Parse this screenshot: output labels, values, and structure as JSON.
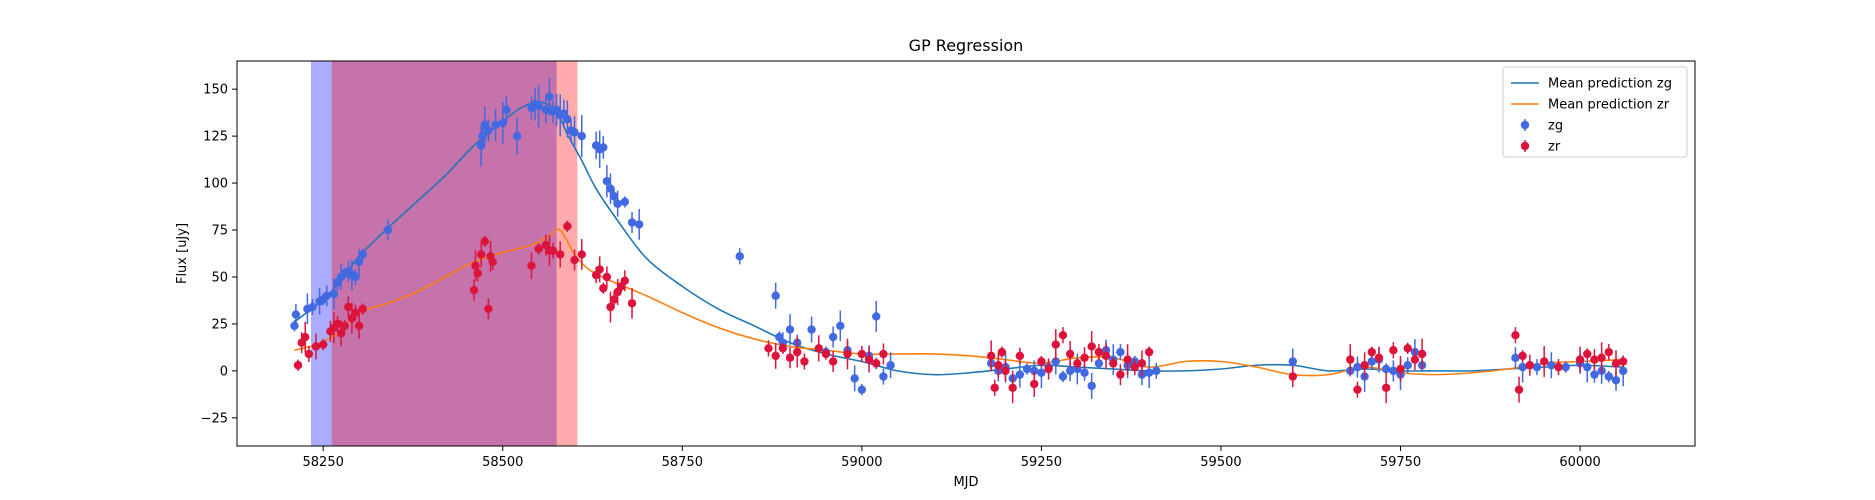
{
  "chart_data": {
    "type": "scatter",
    "title": "GP Regression",
    "xlabel": "MJD",
    "ylabel": "Flux [uJy]",
    "xlim": [
      58130,
      60160
    ],
    "ylim": [
      -40,
      165
    ],
    "xticks": [
      58250,
      58500,
      58750,
      59000,
      59250,
      59500,
      59750,
      60000
    ],
    "yticks": [
      -25,
      0,
      25,
      50,
      75,
      100,
      125,
      150
    ],
    "legend_position": "top-right",
    "shaded_regions": [
      {
        "x0": 58233,
        "x1": 58575,
        "color": "#0000ff",
        "alpha": 0.33
      },
      {
        "x0": 58262,
        "x1": 58604,
        "color": "#ff0000",
        "alpha": 0.33
      }
    ],
    "series": [
      {
        "name": "Mean prediction zg",
        "kind": "line",
        "color": "#1f77b4",
        "x": [
          58210,
          58230,
          58250,
          58275,
          58300,
          58340,
          58380,
          58420,
          58460,
          58500,
          58530,
          58555,
          58575,
          58590,
          58610,
          58630,
          58660,
          58700,
          58750,
          58800,
          58850,
          58900,
          58950,
          59000,
          59050,
          59100,
          59150,
          59200,
          59250,
          59300,
          59350,
          59400,
          59450,
          59500,
          59550,
          59600,
          59650,
          59700,
          59750,
          59800,
          59850,
          59900,
          59950,
          60000,
          60060
        ],
        "y": [
          26,
          32,
          38,
          48,
          61,
          76,
          90,
          104,
          120,
          133,
          141,
          143,
          138,
          126,
          112,
          97,
          80,
          60,
          45,
          33,
          24,
          15,
          9,
          5,
          0,
          -2,
          -1,
          1,
          3,
          2,
          1,
          0,
          0,
          1,
          3,
          3,
          0,
          1,
          0,
          0,
          0,
          1,
          2,
          3,
          2
        ]
      },
      {
        "name": "Mean prediction zr",
        "kind": "line",
        "color": "#ff7f0e",
        "x": [
          58210,
          58240,
          58270,
          58300,
          58340,
          58380,
          58420,
          58460,
          58500,
          58540,
          58565,
          58580,
          58600,
          58620,
          58650,
          58700,
          58750,
          58800,
          58850,
          58900,
          58950,
          59000,
          59050,
          59100,
          59150,
          59200,
          59250,
          59300,
          59350,
          59400,
          59450,
          59500,
          59550,
          59600,
          59650,
          59700,
          59750,
          59800,
          59850,
          59900,
          59950,
          60000,
          60060
        ],
        "y": [
          11,
          14,
          20,
          31,
          36,
          42,
          50,
          58,
          63,
          67,
          72,
          75,
          62,
          54,
          48,
          40,
          31,
          23,
          17,
          13,
          11,
          9,
          9,
          9,
          8,
          6,
          4,
          7,
          7,
          2,
          5,
          5,
          2,
          -2,
          -2,
          2,
          -1,
          -2,
          -1,
          1,
          4,
          5,
          6
        ]
      },
      {
        "name": "zg",
        "kind": "errorbar",
        "color": "#4169e1",
        "x": [
          58210,
          58212,
          58228,
          58235,
          58245,
          58250,
          58255,
          58265,
          58270,
          58275,
          58280,
          58285,
          58290,
          58295,
          58300,
          58305,
          58340,
          58470,
          58472,
          58475,
          58480,
          58490,
          58500,
          58505,
          58520,
          58540,
          58545,
          58550,
          58560,
          58565,
          58570,
          58575,
          58580,
          58585,
          58590,
          58595,
          58600,
          58610,
          58630,
          58635,
          58640,
          58645,
          58650,
          58655,
          58660,
          58670,
          58680,
          58690,
          58830,
          58880,
          58885,
          58890,
          58900,
          58910,
          58930,
          58950,
          58960,
          58970,
          58980,
          58990,
          59000,
          59010,
          59020,
          59030,
          59040,
          59180,
          59190,
          59200,
          59210,
          59220,
          59230,
          59240,
          59250,
          59260,
          59270,
          59280,
          59290,
          59300,
          59310,
          59320,
          59330,
          59340,
          59350,
          59360,
          59370,
          59380,
          59390,
          59400,
          59410,
          59600,
          59680,
          59690,
          59700,
          59710,
          59720,
          59730,
          59740,
          59750,
          59760,
          59770,
          59780,
          59910,
          59920,
          59940,
          59960,
          59980,
          60000,
          60010,
          60020,
          60030,
          60040,
          60050,
          60060
        ],
        "y": [
          24,
          30,
          33,
          34,
          37,
          38,
          40,
          41,
          47,
          50,
          52,
          53,
          51,
          50,
          58,
          62,
          75,
          120,
          125,
          131,
          128,
          131,
          132,
          139,
          125,
          140,
          142,
          141,
          139,
          146,
          138,
          139,
          136,
          137,
          134,
          128,
          127,
          125,
          120,
          118,
          119,
          101,
          97,
          93,
          89,
          90,
          79,
          78,
          61,
          40,
          18,
          15,
          22,
          15,
          22,
          10,
          18,
          24,
          11,
          -4,
          -10,
          8,
          29,
          -3,
          3,
          4,
          0,
          2,
          -4,
          -2,
          1,
          0,
          -1,
          2,
          5,
          -3,
          0,
          1,
          -1,
          -8,
          4,
          11,
          6,
          10,
          3,
          5,
          -2,
          -1,
          0,
          5,
          0,
          2,
          -3,
          5,
          6,
          1,
          0,
          -2,
          3,
          10,
          3,
          7,
          2,
          2,
          3,
          2,
          4,
          2,
          -2,
          0,
          -3,
          -5,
          0
        ]
      },
      {
        "name": "zr",
        "kind": "errorbar",
        "color": "#dc143c",
        "x": [
          58215,
          58220,
          58225,
          58230,
          58240,
          58250,
          58260,
          58265,
          58270,
          58275,
          58280,
          58285,
          58290,
          58295,
          58300,
          58305,
          58460,
          58462,
          58465,
          58470,
          58475,
          58480,
          58483,
          58486,
          58540,
          58550,
          58560,
          58565,
          58570,
          58580,
          58590,
          58600,
          58610,
          58630,
          58635,
          58640,
          58645,
          58650,
          58655,
          58660,
          58665,
          58670,
          58680,
          58870,
          58880,
          58890,
          58900,
          58910,
          58920,
          58940,
          58950,
          58960,
          58980,
          59000,
          59010,
          59020,
          59030,
          59180,
          59185,
          59190,
          59195,
          59200,
          59210,
          59220,
          59240,
          59250,
          59260,
          59270,
          59280,
          59290,
          59300,
          59310,
          59320,
          59330,
          59340,
          59350,
          59360,
          59370,
          59380,
          59390,
          59400,
          59600,
          59680,
          59690,
          59700,
          59710,
          59720,
          59730,
          59740,
          59750,
          59760,
          59770,
          59780,
          59910,
          59915,
          59920,
          59930,
          59950,
          59970,
          60000,
          60010,
          60020,
          60030,
          60040,
          60050,
          60060
        ],
        "y": [
          3,
          15,
          18,
          9,
          13,
          14,
          21,
          23,
          25,
          20,
          24,
          34,
          28,
          31,
          24,
          33,
          43,
          56,
          52,
          62,
          69,
          33,
          61,
          58,
          56,
          65,
          67,
          64,
          64,
          62,
          77,
          59,
          62,
          51,
          54,
          44,
          50,
          34,
          38,
          42,
          45,
          48,
          36,
          12,
          8,
          12,
          7,
          10,
          5,
          12,
          9,
          5,
          9,
          9,
          6,
          4,
          9,
          8,
          -9,
          3,
          10,
          0,
          -9,
          8,
          -7,
          5,
          1,
          14,
          19,
          9,
          4,
          7,
          13,
          10,
          8,
          4,
          -2,
          6,
          2,
          4,
          10,
          -3,
          6,
          -10,
          3,
          10,
          7,
          -9,
          11,
          1,
          12,
          6,
          9,
          19,
          -10,
          8,
          3,
          5,
          2,
          6,
          9,
          6,
          7,
          10,
          4,
          5
        ]
      }
    ]
  }
}
